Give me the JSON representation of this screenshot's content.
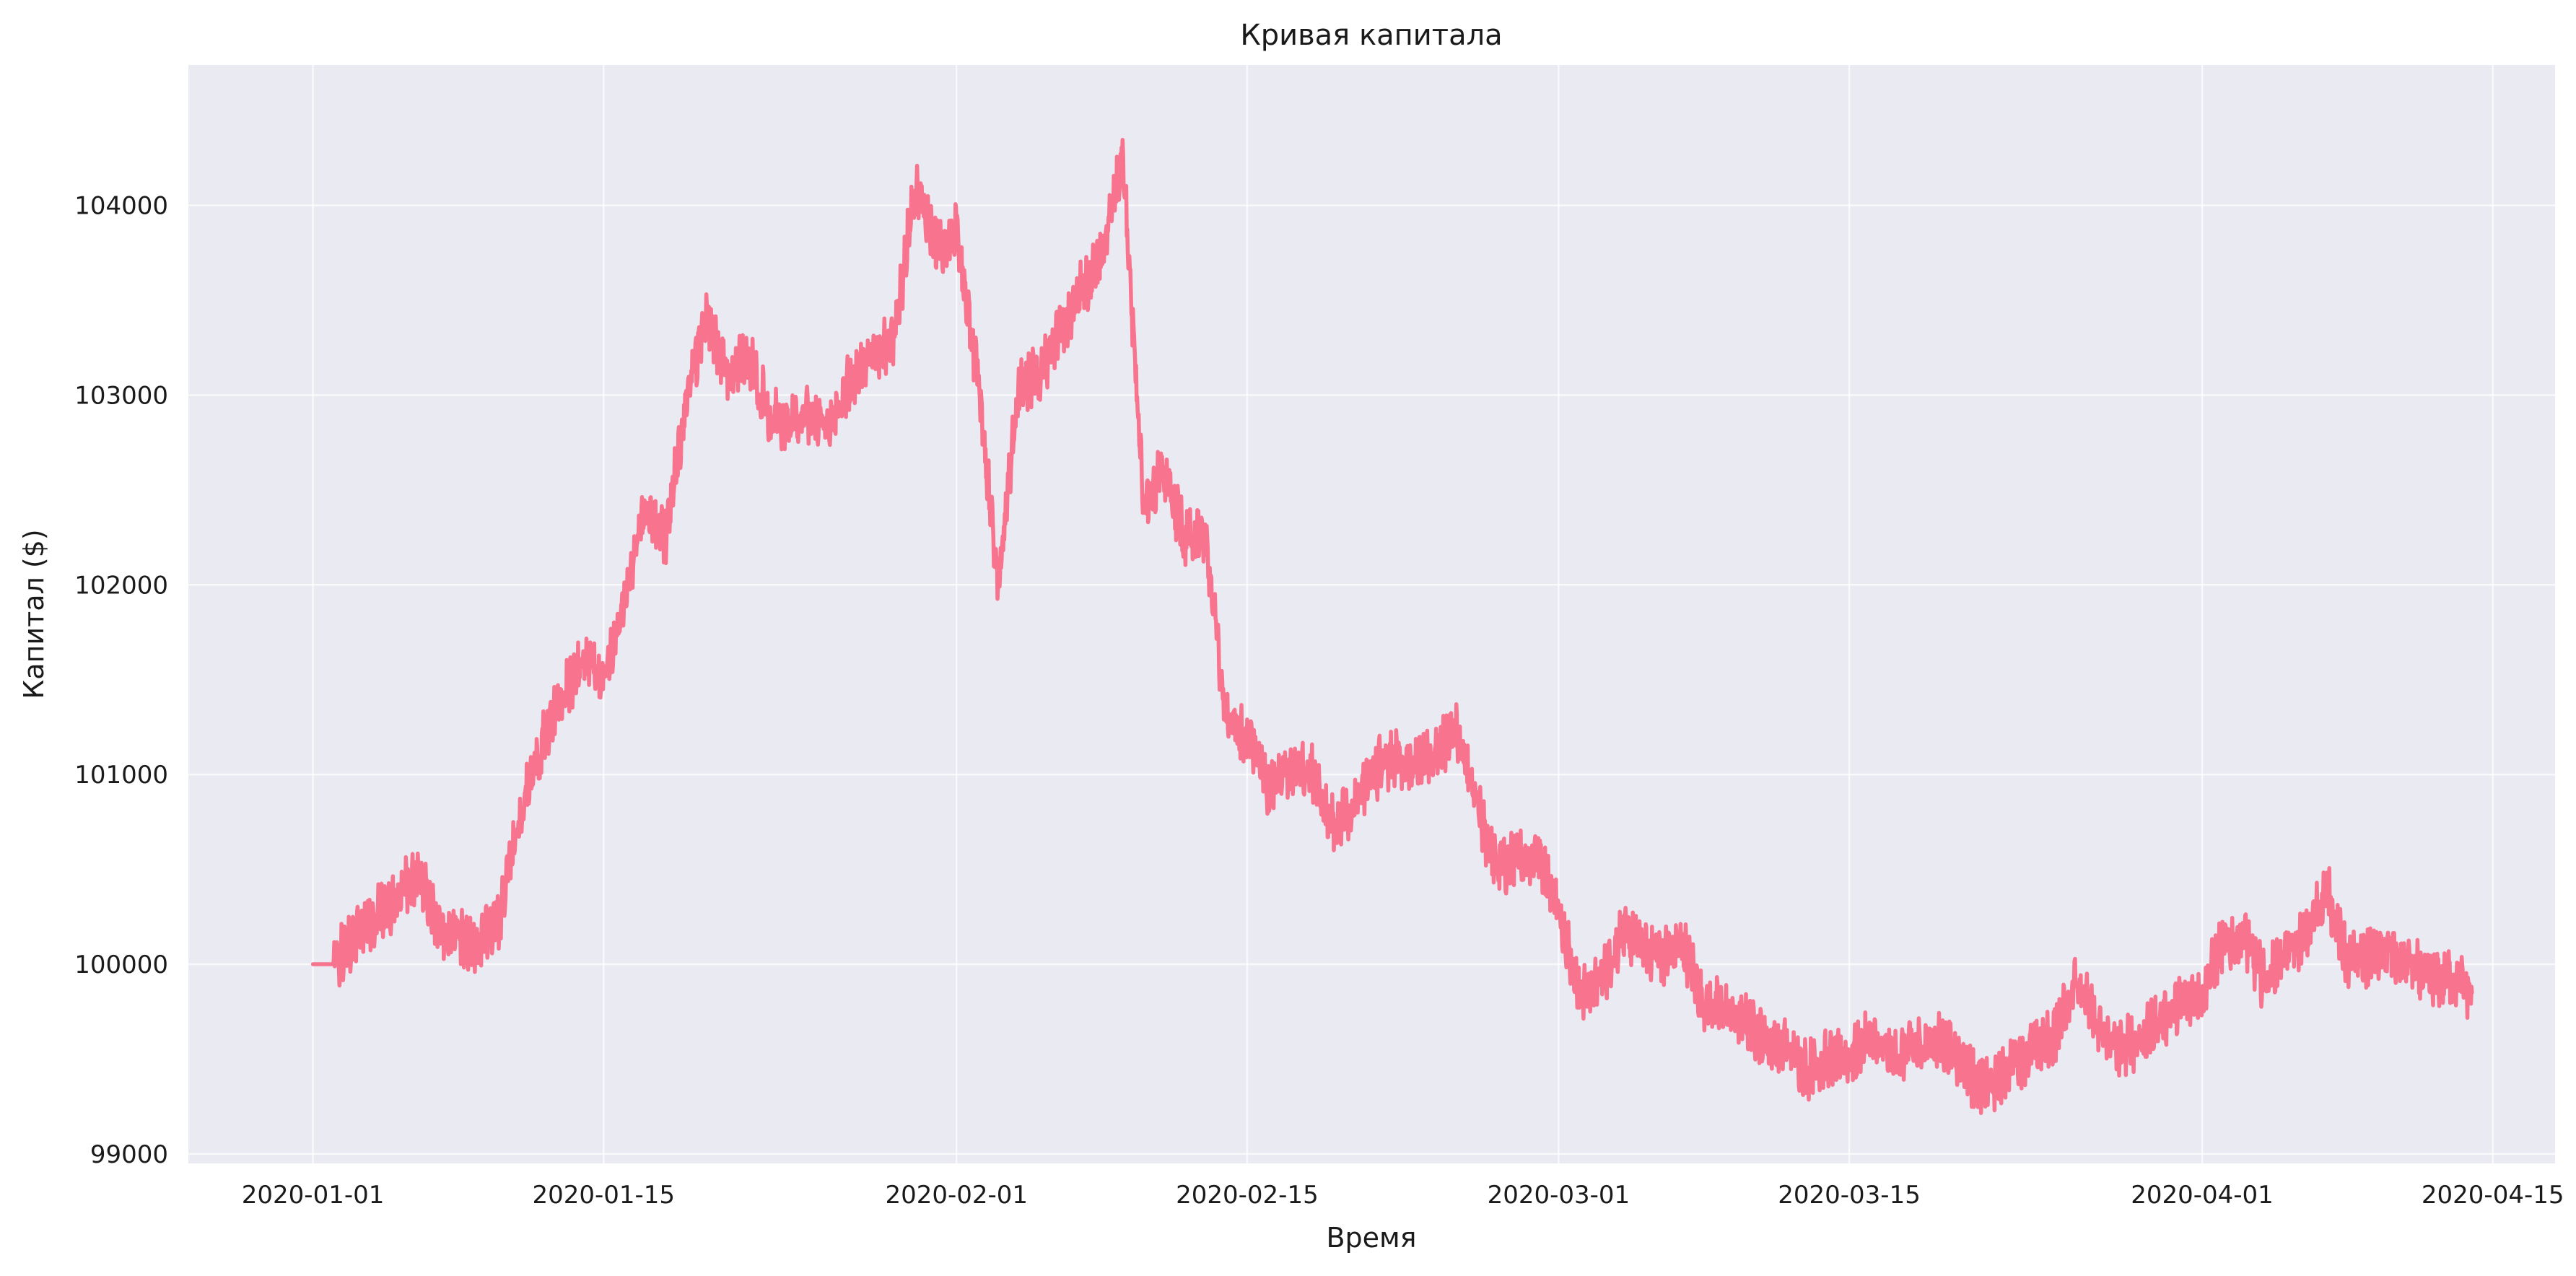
{
  "chart_data": {
    "type": "line",
    "title": "Кривая капитала",
    "xlabel": "Время",
    "ylabel": "Капитал ($)",
    "x_ticks": [
      "2020-01-01",
      "2020-01-15",
      "2020-02-01",
      "2020-02-15",
      "2020-03-01",
      "2020-03-15",
      "2020-04-01",
      "2020-04-15"
    ],
    "y_ticks": [
      "99000",
      "100000",
      "101000",
      "102000",
      "103000",
      "104000"
    ],
    "xlim": [
      "2019-12-26",
      "2020-04-18"
    ],
    "ylim": [
      98950,
      104740
    ],
    "grid": true,
    "style": {
      "background": "#EAEAF2",
      "line_color": "#F8738D"
    },
    "series": [
      {
        "name": "",
        "x": [
          "2020-01-01",
          "2020-01-02",
          "2020-01-03",
          "2020-01-04",
          "2020-01-05",
          "2020-01-06",
          "2020-01-07",
          "2020-01-08",
          "2020-01-09",
          "2020-01-10",
          "2020-01-11",
          "2020-01-12",
          "2020-01-13",
          "2020-01-14",
          "2020-01-15",
          "2020-01-16",
          "2020-01-17",
          "2020-01-18",
          "2020-01-19",
          "2020-01-20",
          "2020-01-21",
          "2020-01-22",
          "2020-01-23",
          "2020-01-24",
          "2020-01-25",
          "2020-01-26",
          "2020-01-27",
          "2020-01-28",
          "2020-01-29",
          "2020-01-30",
          "2020-01-31",
          "2020-02-01",
          "2020-02-02",
          "2020-02-03",
          "2020-02-04",
          "2020-02-05",
          "2020-02-06",
          "2020-02-07",
          "2020-02-08",
          "2020-02-09",
          "2020-02-10",
          "2020-02-11",
          "2020-02-12",
          "2020-02-13",
          "2020-02-14",
          "2020-02-15",
          "2020-02-16",
          "2020-02-17",
          "2020-02-18",
          "2020-02-19",
          "2020-02-20",
          "2020-02-21",
          "2020-02-22",
          "2020-02-23",
          "2020-02-24",
          "2020-02-25",
          "2020-02-26",
          "2020-02-27",
          "2020-02-28",
          "2020-02-29",
          "2020-03-01",
          "2020-03-02",
          "2020-03-03",
          "2020-03-04",
          "2020-03-05",
          "2020-03-06",
          "2020-03-07",
          "2020-03-08",
          "2020-03-09",
          "2020-03-10",
          "2020-03-11",
          "2020-03-12",
          "2020-03-13",
          "2020-03-14",
          "2020-03-15",
          "2020-03-16",
          "2020-03-17",
          "2020-03-18",
          "2020-03-19",
          "2020-03-20",
          "2020-03-21",
          "2020-03-22",
          "2020-03-23",
          "2020-03-24",
          "2020-03-25",
          "2020-03-26",
          "2020-03-27",
          "2020-03-28",
          "2020-03-29",
          "2020-03-30",
          "2020-03-31",
          "2020-04-01",
          "2020-04-02",
          "2020-04-03",
          "2020-04-04",
          "2020-04-05",
          "2020-04-06",
          "2020-04-07",
          "2020-04-08",
          "2020-04-09",
          "2020-04-10",
          "2020-04-11",
          "2020-04-12",
          "2020-04-13",
          "2020-04-14"
        ],
        "y": [
          100000,
          100000,
          100150,
          100250,
          100350,
          100480,
          100200,
          100150,
          100100,
          100250,
          100800,
          101150,
          101400,
          101600,
          101500,
          101900,
          102400,
          102250,
          103000,
          103400,
          103100,
          103200,
          102900,
          102850,
          102900,
          102850,
          103100,
          103200,
          103300,
          104100,
          103800,
          103850,
          103100,
          102000,
          103050,
          103100,
          103350,
          103550,
          103700,
          104250,
          102450,
          102600,
          102250,
          102250,
          101300,
          101200,
          100950,
          101000,
          101050,
          100750,
          100800,
          101000,
          101100,
          101050,
          101100,
          101250,
          100850,
          100500,
          100550,
          100600,
          100300,
          99850,
          99900,
          100150,
          100100,
          100050,
          100100,
          99800,
          99750,
          99700,
          99600,
          99550,
          99450,
          99500,
          99500,
          99600,
          99500,
          99550,
          99600,
          99550,
          99400,
          99350,
          99500,
          99550,
          99650,
          99950,
          99650,
          99550,
          99600,
          99700,
          99800,
          99850,
          100100,
          100150,
          99900,
          100050,
          100150,
          100400,
          100000,
          100050,
          100050,
          100000,
          99900,
          99950,
          99850
        ]
      }
    ]
  }
}
